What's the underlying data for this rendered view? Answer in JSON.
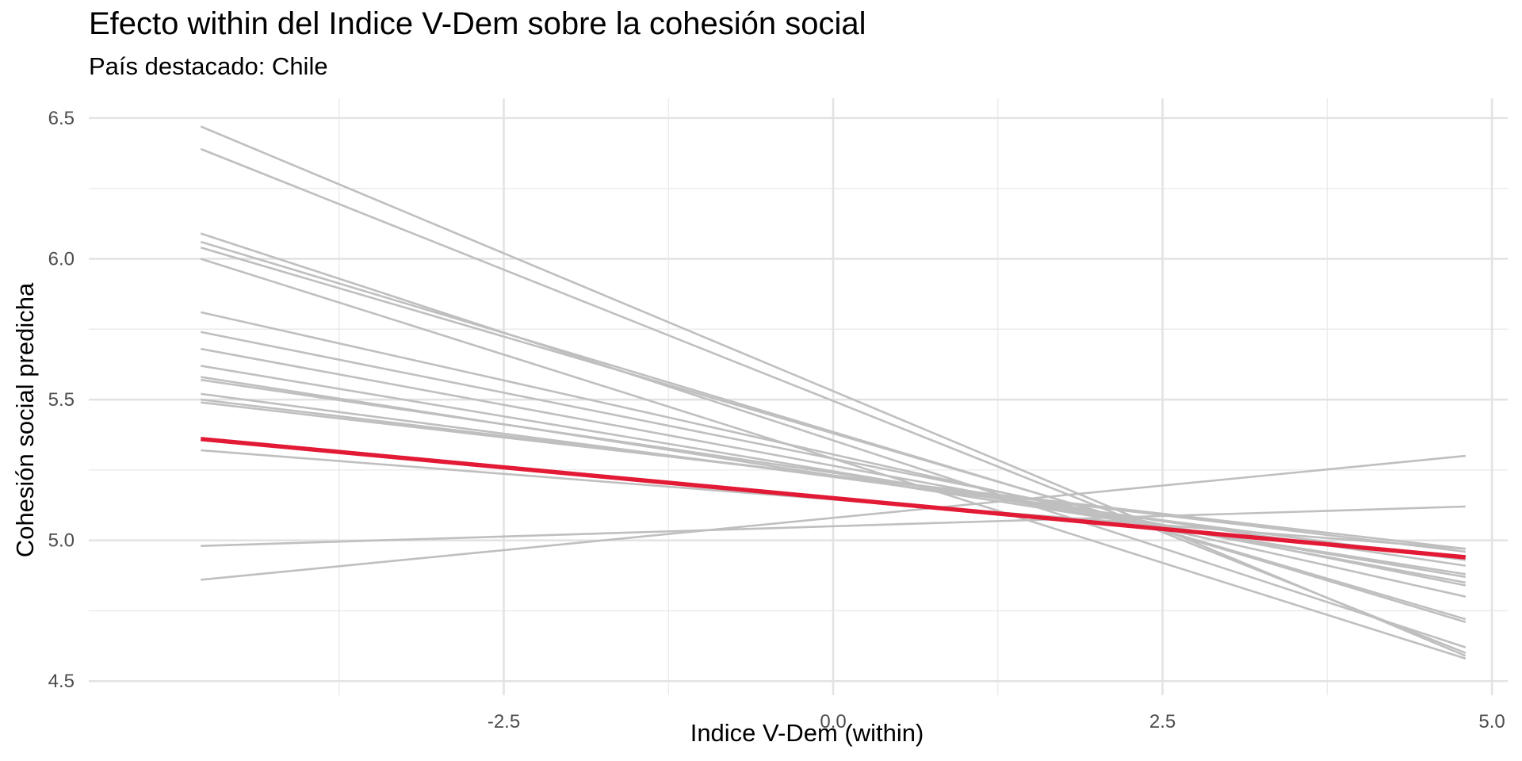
{
  "chart_data": {
    "type": "line",
    "title": "Efecto within del Indice V-Dem sobre la cohesión social",
    "subtitle": "País destacado: Chile",
    "xlabel": "Indice V-Dem (within)",
    "ylabel": "Cohesión social predicha",
    "xlim": [
      -5.65,
      5.12
    ],
    "ylim": [
      4.45,
      6.57
    ],
    "x_ticks": [
      -2.5,
      0.0,
      2.5,
      5.0
    ],
    "x_tick_labels": [
      "-2.5",
      "0.0",
      "2.5",
      "5.0"
    ],
    "y_ticks": [
      4.5,
      5.0,
      5.5,
      6.0,
      6.5
    ],
    "y_tick_labels": [
      "4.5",
      "5.0",
      "5.5",
      "6.0",
      "6.5"
    ],
    "grid": true,
    "highlight_color": "#e31a36",
    "background_line_color": "#bfbfbf",
    "series": [
      {
        "x": [
          -4.8,
          4.8
        ],
        "y": [
          6.47,
          4.59
        ]
      },
      {
        "x": [
          -4.8,
          4.8
        ],
        "y": [
          6.39,
          4.6
        ]
      },
      {
        "x": [
          -4.8,
          4.8
        ],
        "y": [
          6.09,
          4.62
        ]
      },
      {
        "x": [
          -4.8,
          4.8
        ],
        "y": [
          6.06,
          4.71
        ]
      },
      {
        "x": [
          -4.8,
          4.8
        ],
        "y": [
          6.04,
          4.72
        ]
      },
      {
        "x": [
          -4.8,
          4.8
        ],
        "y": [
          6.0,
          4.58
        ]
      },
      {
        "x": [
          -4.8,
          4.8
        ],
        "y": [
          5.81,
          4.8
        ]
      },
      {
        "x": [
          -4.8,
          4.8
        ],
        "y": [
          5.74,
          4.84
        ]
      },
      {
        "x": [
          -4.8,
          4.8
        ],
        "y": [
          5.68,
          4.85
        ]
      },
      {
        "x": [
          -4.8,
          4.8
        ],
        "y": [
          5.62,
          4.87
        ]
      },
      {
        "x": [
          -4.8,
          4.8
        ],
        "y": [
          5.58,
          4.88
        ]
      },
      {
        "x": [
          -4.8,
          4.8
        ],
        "y": [
          5.57,
          4.91
        ]
      },
      {
        "x": [
          -4.8,
          4.8
        ],
        "y": [
          5.52,
          4.93
        ]
      },
      {
        "x": [
          -4.8,
          4.8
        ],
        "y": [
          5.5,
          4.96
        ]
      },
      {
        "x": [
          -4.8,
          4.8
        ],
        "y": [
          5.49,
          4.97
        ]
      },
      {
        "x": [
          -4.8,
          4.8
        ],
        "y": [
          5.32,
          4.97
        ]
      },
      {
        "x": [
          -4.8,
          4.8
        ],
        "y": [
          4.98,
          5.12
        ]
      },
      {
        "x": [
          -4.8,
          4.8
        ],
        "y": [
          4.86,
          5.3
        ]
      },
      {
        "name": "Chile",
        "highlight": true,
        "x": [
          -4.8,
          4.8
        ],
        "y": [
          5.36,
          4.94
        ]
      }
    ]
  }
}
